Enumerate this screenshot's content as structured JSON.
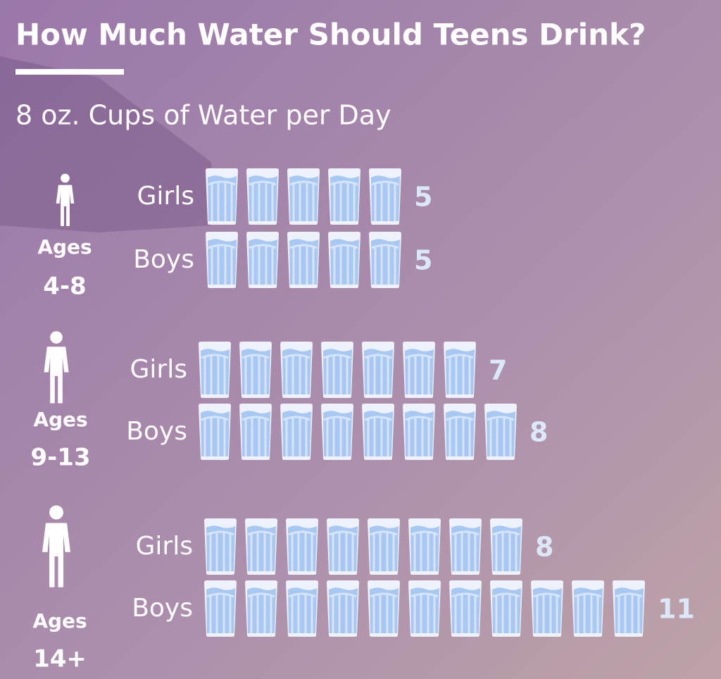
{
  "chart_data": {
    "type": "pictograph",
    "title": "How Much Water Should Teens Drink?",
    "subtitle": "8 oz. Cups of Water per Day",
    "groups": [
      {
        "label": [
          "Ages",
          "4-8"
        ],
        "categories": [
          "Girls",
          "Boys"
        ],
        "values": [
          5,
          5
        ]
      },
      {
        "label": [
          "Ages",
          "9-13"
        ],
        "categories": [
          "Girls",
          "Boys"
        ],
        "values": [
          7,
          8
        ]
      },
      {
        "label": [
          "Ages",
          "14+"
        ],
        "categories": [
          "Girls",
          "Boys"
        ],
        "values": [
          8,
          11
        ]
      }
    ]
  }
}
